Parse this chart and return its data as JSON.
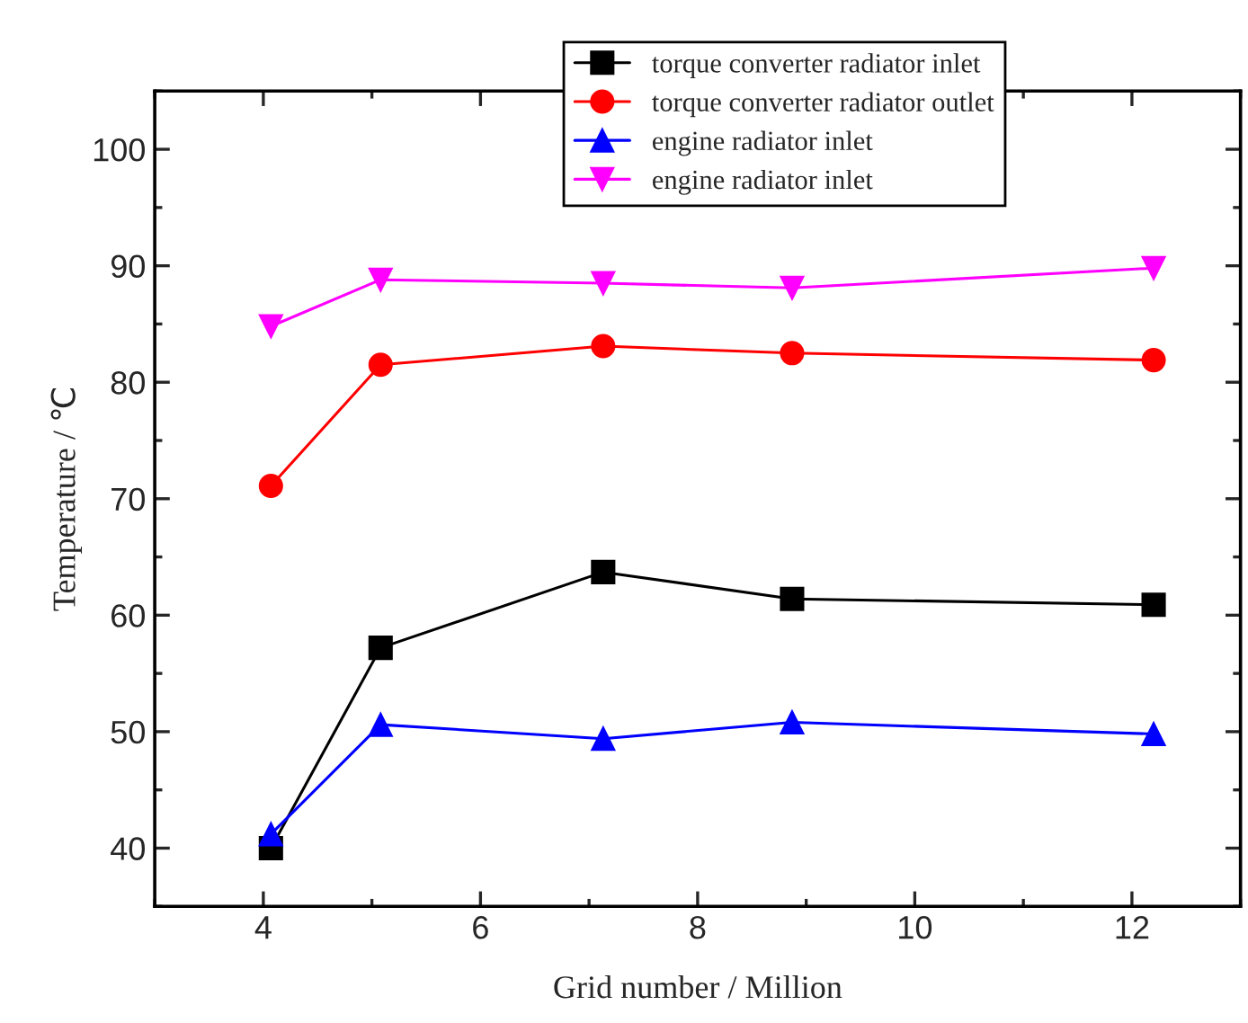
{
  "chart_data": {
    "type": "line",
    "xlabel": "Grid number / Million",
    "ylabel": "Temperature / ℃",
    "x": [
      4.07,
      5.08,
      7.13,
      8.87,
      12.2
    ],
    "series": [
      {
        "name": "torque converter radiator inlet",
        "color": "#000000",
        "marker": "square",
        "values": [
          40.0,
          57.2,
          63.7,
          61.4,
          60.9
        ]
      },
      {
        "name": "torque converter radiator outlet",
        "color": "#ff0000",
        "marker": "circle",
        "values": [
          71.1,
          81.5,
          83.1,
          82.5,
          81.9
        ]
      },
      {
        "name": "engine radiator inlet",
        "color": "#0000ff",
        "marker": "triangle",
        "values": [
          41.2,
          50.6,
          49.4,
          50.8,
          49.8
        ]
      },
      {
        "name": "engine radiator inlet",
        "color": "#ff00ff",
        "marker": "triangle_down",
        "values": [
          84.8,
          88.8,
          88.5,
          88.1,
          89.8
        ]
      }
    ],
    "xlim": [
      3,
      13
    ],
    "xticks": [
      4,
      6,
      8,
      10,
      12
    ],
    "ylim": [
      35,
      105
    ],
    "yticks": [
      40,
      50,
      60,
      70,
      80,
      90,
      100
    ],
    "grid": false,
    "legend": "top",
    "line_style": "solid"
  }
}
